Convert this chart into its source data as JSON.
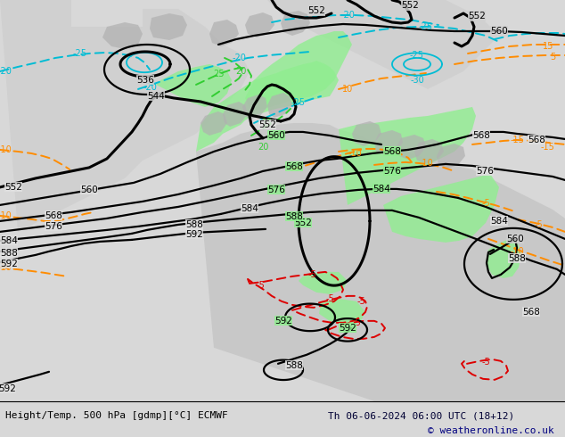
{
  "title_left": "Height/Temp. 500 hPa [gdmp][°C] ECMWF",
  "title_right": "Th 06-06-2024 06:00 UTC (18+12)",
  "copyright": "© weatheronline.co.uk",
  "bg_color": "#d8d8d8",
  "ocean_color": "#e8e8e8",
  "green_color": "#90ee90",
  "gray_land": "#b8b8b8",
  "fig_width": 6.34,
  "fig_height": 4.9,
  "dpi": 100,
  "black": "#000000",
  "orange": "#ff8c00",
  "cyan": "#00bcd4",
  "lime": "#32cd32",
  "red": "#dd0000",
  "navy": "#000080"
}
